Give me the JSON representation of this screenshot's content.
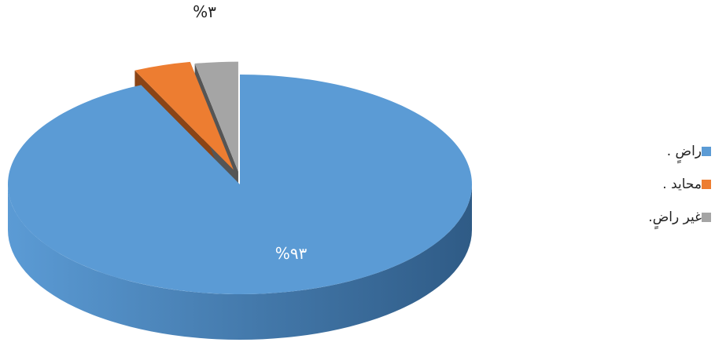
{
  "chart_data": {
    "type": "pie",
    "title": "",
    "slices": [
      {
        "label": "راضٍ .",
        "value": 93,
        "percent_label": "%٩٣",
        "color": "#5B9BD5",
        "dark": "#2F5B86"
      },
      {
        "label": "محايد .",
        "value": 4,
        "percent_label": "",
        "color": "#ED7D31",
        "dark": "#8A4416"
      },
      {
        "label": "غير راضٍ.",
        "value": 3,
        "percent_label": "%٣",
        "color": "#A5A5A5",
        "dark": "#555555"
      }
    ],
    "legend_position": "right"
  }
}
